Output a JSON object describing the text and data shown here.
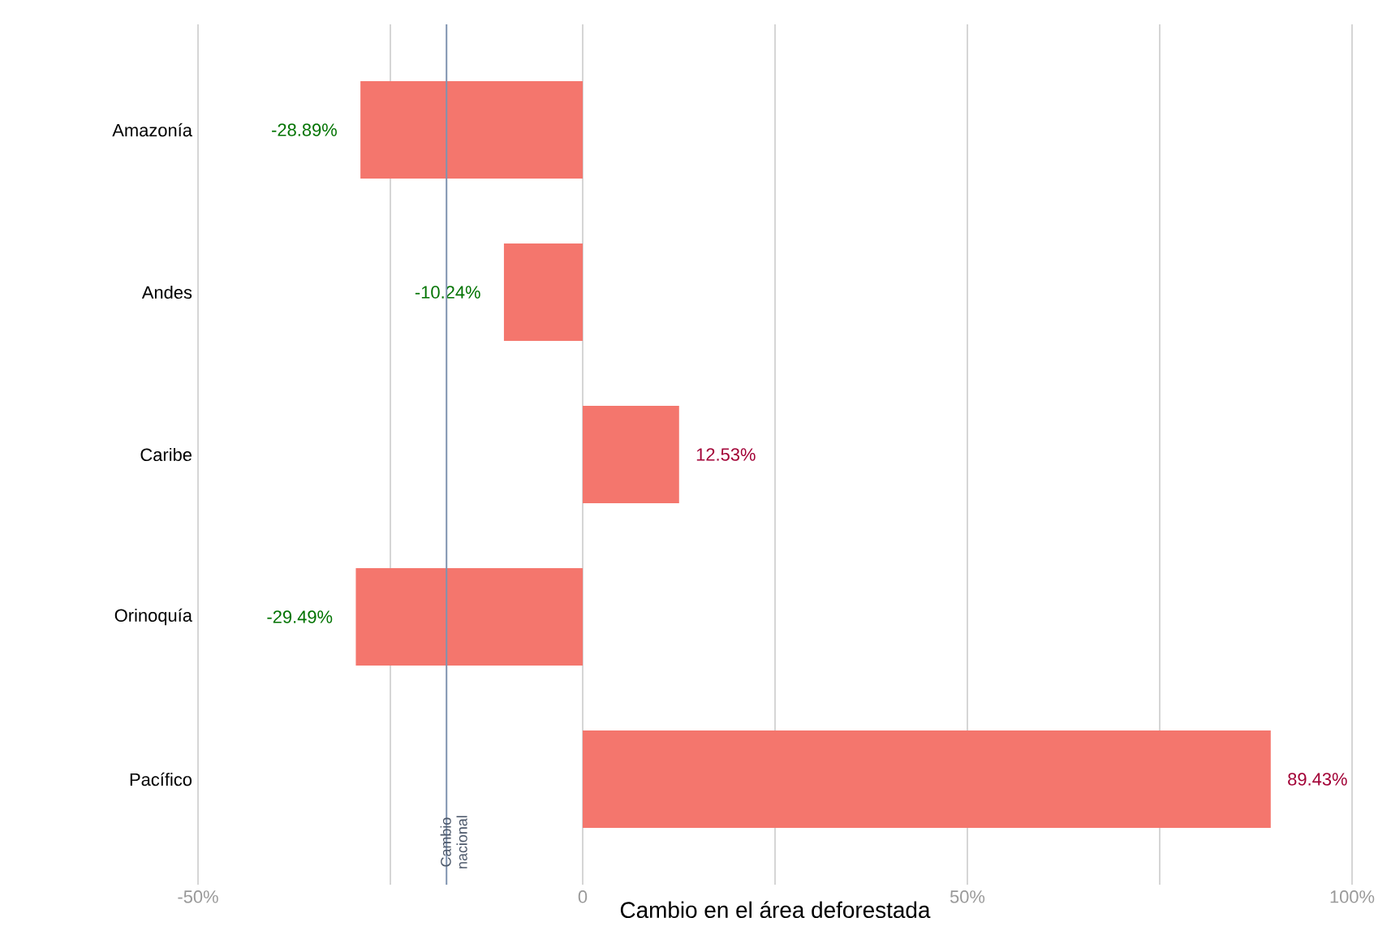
{
  "chart_data": {
    "type": "bar",
    "orientation": "horizontal",
    "xlabel": "Cambio en el área deforestada",
    "categories": [
      "Amazonía",
      "Andes",
      "Caribe",
      "Orinoquía",
      "Pacífico"
    ],
    "values": [
      -28.89,
      -10.24,
      12.53,
      -29.49,
      89.43
    ],
    "value_labels": [
      "-28.89%",
      "-10.24%",
      "12.53%",
      "-29.49%",
      "89.43%"
    ],
    "color": "#f4766d",
    "xlim": [
      -50,
      100
    ],
    "xticks": [
      {
        "value": -50,
        "label": "-50%"
      },
      {
        "value": -25,
        "label": null
      },
      0,
      {
        "value": 25,
        "label": null
      },
      {
        "value": 50,
        "label": "50%"
      },
      {
        "value": 75,
        "label": null
      },
      {
        "value": 100,
        "label": "100%"
      }
    ],
    "grid": "x",
    "ref_lines": [
      {
        "axis": "x",
        "value": -17.7,
        "label": "Cambio nacional",
        "color": "#7f93b0"
      }
    ]
  }
}
